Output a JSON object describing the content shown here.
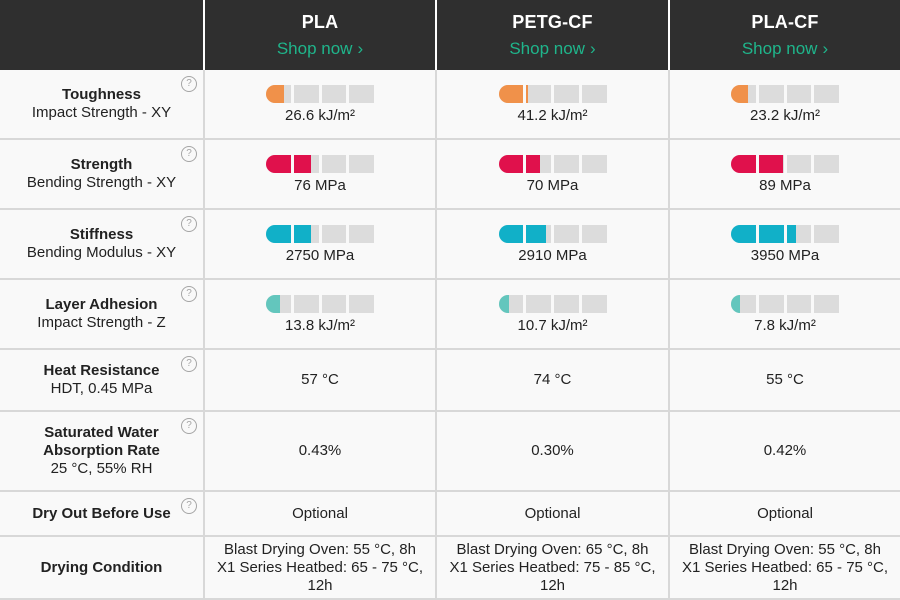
{
  "products": [
    {
      "name": "PLA",
      "shop": "Shop now"
    },
    {
      "name": "PETG-CF",
      "shop": "Shop now"
    },
    {
      "name": "PLA-CF",
      "shop": "Shop now"
    }
  ],
  "colors": {
    "toughness": "#f0914a",
    "strength": "#e0114c",
    "stiffness": "#11b0c8",
    "layer_adhesion": "#63c6bd",
    "shop_link": "#1fb58b"
  },
  "rows": [
    {
      "title": "Toughness",
      "subtitle": "Impact Strength - XY",
      "values": [
        "26.6 kJ/m²",
        "41.2 kJ/m²",
        "23.2 kJ/m²"
      ],
      "levels": [
        0.17,
        0.27,
        0.16
      ]
    },
    {
      "title": "Strength",
      "subtitle": "Bending Strength - XY",
      "values": [
        "76 MPa",
        "70 MPa",
        "89 MPa"
      ],
      "levels": [
        0.42,
        0.38,
        0.48
      ]
    },
    {
      "title": "Stiffness",
      "subtitle": "Bending Modulus - XY",
      "values": [
        "2750 MPa",
        "2910 MPa",
        "3950 MPa"
      ],
      "levels": [
        0.42,
        0.44,
        0.6
      ]
    },
    {
      "title": "Layer Adhesion",
      "subtitle": "Impact Strength - Z",
      "values": [
        "13.8 kJ/m²",
        "10.7 kJ/m²",
        "7.8 kJ/m²"
      ],
      "levels": [
        0.13,
        0.1,
        0.08
      ]
    },
    {
      "title": "Heat Resistance",
      "subtitle": "HDT, 0.45 MPa",
      "values": [
        "57 °C",
        "74 °C",
        "55 °C"
      ]
    },
    {
      "title": "Saturated Water Absorption Rate",
      "subtitle": "25 °C, 55% RH",
      "values": [
        "0.43%",
        "0.30%",
        "0.42%"
      ]
    },
    {
      "title": "Dry Out Before Use",
      "subtitle": "",
      "values": [
        "Optional",
        "Optional",
        "Optional"
      ]
    },
    {
      "title": "Drying Condition",
      "subtitle": "",
      "values": [
        "Blast Drying Oven: 55 °C, 8h",
        "Blast Drying Oven: 65 °C, 8h",
        "Blast Drying Oven: 55 °C, 8h"
      ],
      "values2": [
        "X1 Series Heatbed: 65 - 75 °C, 12h",
        "X1 Series Heatbed: 75 - 85 °C, 12h",
        "X1 Series Heatbed: 65 - 75 °C, 12h"
      ]
    }
  ]
}
